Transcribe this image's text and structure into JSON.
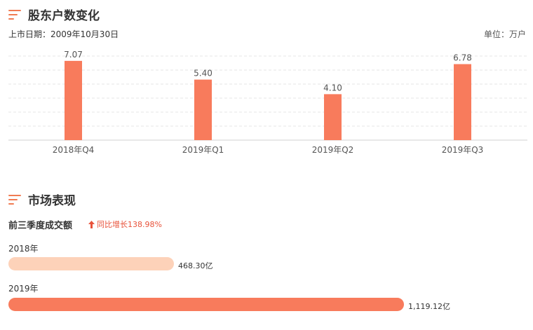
{
  "sections": {
    "holders_title": "股东户数变化",
    "market_title": "市场表现"
  },
  "meta": {
    "listing_date": "上市日期：2009年10月30日",
    "unit": "单位：万户"
  },
  "icons": {
    "section": "title-lines-icon",
    "growth": "up-arrow-icon"
  },
  "colors": {
    "accent": "#f07b52",
    "bar": "#f87b5c",
    "light_bar": "#fdd2b9",
    "up": "#e8523a",
    "grid": "#e5e5e5"
  },
  "chart_data": {
    "type": "bar",
    "categories": [
      "2018年Q4",
      "2019年Q1",
      "2019年Q2",
      "2019年Q3"
    ],
    "values": [
      7.07,
      5.4,
      4.1,
      6.78
    ],
    "value_labels": [
      "7.07",
      "5.40",
      "4.10",
      "6.78"
    ],
    "ylim": [
      0,
      7.5
    ],
    "grid": true
  },
  "market": {
    "subtitle": "前三季度成交额",
    "growth_text": "同比增长138.98%",
    "bars": [
      {
        "year": "2018年",
        "value": 468.3,
        "value_label": "468.30亿"
      },
      {
        "year": "2019年",
        "value": 1119.12,
        "value_label": "1,119.12亿"
      }
    ]
  }
}
